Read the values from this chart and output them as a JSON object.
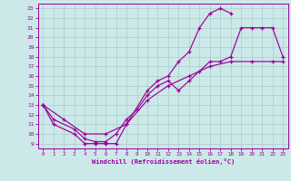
{
  "xlabel": "Windchill (Refroidissement éolien,°C)",
  "bg_color": "#cce8e8",
  "grid_color": "#aacccc",
  "line_color": "#990099",
  "xlim": [
    -0.5,
    23.5
  ],
  "ylim": [
    8.5,
    23.5
  ],
  "yticks": [
    9,
    10,
    11,
    12,
    13,
    14,
    15,
    16,
    17,
    18,
    19,
    20,
    21,
    22,
    23
  ],
  "xticks": [
    0,
    1,
    2,
    3,
    4,
    5,
    6,
    7,
    8,
    9,
    10,
    11,
    12,
    13,
    14,
    15,
    16,
    17,
    18,
    19,
    20,
    21,
    22,
    23
  ],
  "line1_x": [
    0,
    1,
    3,
    4,
    5,
    6,
    7,
    8,
    10,
    11,
    12,
    13,
    14,
    15,
    16,
    17,
    18
  ],
  "line1_y": [
    13,
    11,
    10,
    9,
    9,
    9,
    9,
    11,
    14.5,
    15.5,
    16,
    17.5,
    18.5,
    21,
    22.5,
    23,
    22.5
  ],
  "line2_x": [
    0,
    1,
    3,
    4,
    5,
    6,
    7,
    8,
    9,
    10,
    11,
    12,
    13,
    14,
    15,
    16,
    17,
    18,
    19,
    20,
    21,
    22,
    23
  ],
  "line2_y": [
    13,
    11.5,
    10.5,
    9.5,
    9.2,
    9.2,
    10,
    11.5,
    12.5,
    14,
    15,
    15.5,
    14.5,
    15.5,
    16.5,
    17.5,
    17.5,
    18,
    21,
    21,
    21,
    21,
    18
  ],
  "line3_x": [
    0,
    2,
    4,
    6,
    8,
    10,
    12,
    14,
    16,
    18,
    20,
    22,
    23
  ],
  "line3_y": [
    13,
    11.5,
    10,
    10,
    11,
    13.5,
    15,
    16,
    17,
    17.5,
    17.5,
    17.5,
    17.5
  ]
}
